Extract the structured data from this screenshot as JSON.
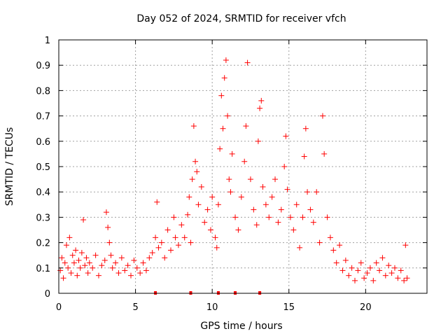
{
  "chart_data": {
    "type": "scatter",
    "title": "Day 052 of 2024, SRMTID for receiver vfch",
    "xlabel": "GPS time / hours",
    "ylabel": "SRMTID / TECUs",
    "xlim": [
      0,
      24
    ],
    "ylim": [
      0,
      1
    ],
    "xticks": [
      0,
      5,
      10,
      15,
      20
    ],
    "yticks": [
      0,
      0.1,
      0.2,
      0.3,
      0.4,
      0.5,
      0.6,
      0.7,
      0.8,
      0.9,
      1
    ],
    "ytick_labels": [
      "0",
      "0.1",
      "0.2",
      "0.3",
      "0.4",
      "0.5",
      "0.6",
      "0.7",
      "0.8",
      "0.9",
      "1"
    ],
    "grid": true,
    "marker": "+",
    "color": "#ff0000",
    "series": [
      {
        "name": "SRMTID",
        "points": [
          [
            0.1,
            0.09
          ],
          [
            0.2,
            0.14
          ],
          [
            0.3,
            0.06
          ],
          [
            0.4,
            0.12
          ],
          [
            0.5,
            0.19
          ],
          [
            0.6,
            0.1
          ],
          [
            0.7,
            0.22
          ],
          [
            0.8,
            0.08
          ],
          [
            0.9,
            0.15
          ],
          [
            1.0,
            0.12
          ],
          [
            1.1,
            0.17
          ],
          [
            1.2,
            0.07
          ],
          [
            1.3,
            0.13
          ],
          [
            1.4,
            0.1
          ],
          [
            1.5,
            0.16
          ],
          [
            1.6,
            0.29
          ],
          [
            1.7,
            0.11
          ],
          [
            1.8,
            0.14
          ],
          [
            1.9,
            0.08
          ],
          [
            2.0,
            0.12
          ],
          [
            2.2,
            0.1
          ],
          [
            2.4,
            0.15
          ],
          [
            2.6,
            0.07
          ],
          [
            2.8,
            0.11
          ],
          [
            3.0,
            0.13
          ],
          [
            3.1,
            0.32
          ],
          [
            3.2,
            0.26
          ],
          [
            3.3,
            0.2
          ],
          [
            3.4,
            0.15
          ],
          [
            3.5,
            0.1
          ],
          [
            3.7,
            0.12
          ],
          [
            3.9,
            0.08
          ],
          [
            4.1,
            0.14
          ],
          [
            4.3,
            0.09
          ],
          [
            4.5,
            0.11
          ],
          [
            4.7,
            0.07
          ],
          [
            4.9,
            0.13
          ],
          [
            5.1,
            0.1
          ],
          [
            5.3,
            0.08
          ],
          [
            5.5,
            0.12
          ],
          [
            5.7,
            0.09
          ],
          [
            5.9,
            0.14
          ],
          [
            6.1,
            0.16
          ],
          [
            6.3,
            0.22
          ],
          [
            6.4,
            0.36
          ],
          [
            6.5,
            0.18
          ],
          [
            6.7,
            0.2
          ],
          [
            6.9,
            0.14
          ],
          [
            7.1,
            0.25
          ],
          [
            7.3,
            0.17
          ],
          [
            7.5,
            0.3
          ],
          [
            7.6,
            0.22
          ],
          [
            7.8,
            0.19
          ],
          [
            8.0,
            0.27
          ],
          [
            8.2,
            0.22
          ],
          [
            8.4,
            0.31
          ],
          [
            8.5,
            0.38
          ],
          [
            8.6,
            0.2
          ],
          [
            8.7,
            0.45
          ],
          [
            8.8,
            0.66
          ],
          [
            8.9,
            0.52
          ],
          [
            9.0,
            0.48
          ],
          [
            9.1,
            0.35
          ],
          [
            9.3,
            0.42
          ],
          [
            9.5,
            0.28
          ],
          [
            9.7,
            0.33
          ],
          [
            9.9,
            0.25
          ],
          [
            10.0,
            0.38
          ],
          [
            10.2,
            0.22
          ],
          [
            10.3,
            0.18
          ],
          [
            10.4,
            0.35
          ],
          [
            10.5,
            0.57
          ],
          [
            10.6,
            0.78
          ],
          [
            10.7,
            0.65
          ],
          [
            10.8,
            0.85
          ],
          [
            10.9,
            0.92
          ],
          [
            11.0,
            0.7
          ],
          [
            11.1,
            0.45
          ],
          [
            11.2,
            0.4
          ],
          [
            11.3,
            0.55
          ],
          [
            11.5,
            0.3
          ],
          [
            11.7,
            0.25
          ],
          [
            11.9,
            0.38
          ],
          [
            12.1,
            0.52
          ],
          [
            12.2,
            0.66
          ],
          [
            12.3,
            0.91
          ],
          [
            12.5,
            0.45
          ],
          [
            12.7,
            0.33
          ],
          [
            12.9,
            0.27
          ],
          [
            13.0,
            0.6
          ],
          [
            13.1,
            0.73
          ],
          [
            13.2,
            0.76
          ],
          [
            13.3,
            0.42
          ],
          [
            13.5,
            0.35
          ],
          [
            13.7,
            0.3
          ],
          [
            13.9,
            0.38
          ],
          [
            14.1,
            0.45
          ],
          [
            14.3,
            0.28
          ],
          [
            14.5,
            0.33
          ],
          [
            14.7,
            0.5
          ],
          [
            14.8,
            0.62
          ],
          [
            14.9,
            0.41
          ],
          [
            15.1,
            0.3
          ],
          [
            15.3,
            0.25
          ],
          [
            15.5,
            0.35
          ],
          [
            15.7,
            0.18
          ],
          [
            15.9,
            0.3
          ],
          [
            16.0,
            0.54
          ],
          [
            16.1,
            0.65
          ],
          [
            16.2,
            0.4
          ],
          [
            16.4,
            0.33
          ],
          [
            16.6,
            0.28
          ],
          [
            16.8,
            0.4
          ],
          [
            17.0,
            0.2
          ],
          [
            17.2,
            0.7
          ],
          [
            17.3,
            0.55
          ],
          [
            17.5,
            0.3
          ],
          [
            17.7,
            0.22
          ],
          [
            17.9,
            0.17
          ],
          [
            18.1,
            0.12
          ],
          [
            18.3,
            0.19
          ],
          [
            18.5,
            0.09
          ],
          [
            18.7,
            0.13
          ],
          [
            18.9,
            0.07
          ],
          [
            19.1,
            0.1
          ],
          [
            19.3,
            0.05
          ],
          [
            19.5,
            0.09
          ],
          [
            19.7,
            0.12
          ],
          [
            19.9,
            0.06
          ],
          [
            20.1,
            0.08
          ],
          [
            20.3,
            0.1
          ],
          [
            20.5,
            0.05
          ],
          [
            20.7,
            0.12
          ],
          [
            20.9,
            0.09
          ],
          [
            21.1,
            0.14
          ],
          [
            21.3,
            0.07
          ],
          [
            21.5,
            0.11
          ],
          [
            21.7,
            0.08
          ],
          [
            21.9,
            0.1
          ],
          [
            22.1,
            0.06
          ],
          [
            22.3,
            0.09
          ],
          [
            22.5,
            0.05
          ],
          [
            22.6,
            0.19
          ],
          [
            22.7,
            0.06
          ]
        ]
      }
    ],
    "baseline_marks_x": [
      6.3,
      8.6,
      10.4,
      11.5,
      13.1
    ]
  }
}
